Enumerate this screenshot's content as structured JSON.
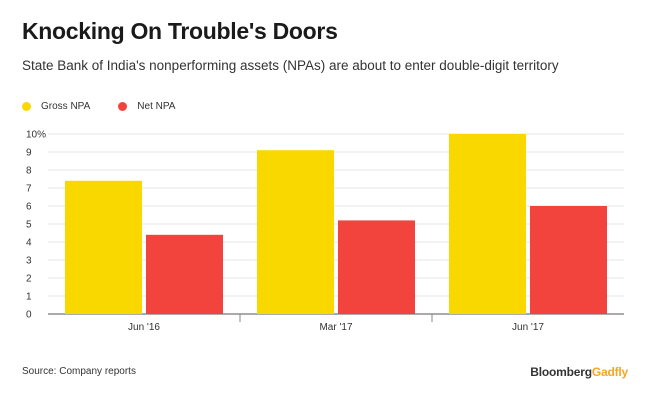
{
  "header": {
    "title": "Knocking On Trouble's Doors",
    "subtitle": "State Bank of India's nonperforming assets (NPAs) are about to enter double-digit territory"
  },
  "legend": [
    {
      "label": "Gross NPA",
      "color": "#f9d800"
    },
    {
      "label": "Net NPA",
      "color": "#f2443d"
    }
  ],
  "chart_data": {
    "type": "bar",
    "title": "Knocking On Trouble's Doors",
    "xlabel": "",
    "ylabel": "",
    "categories": [
      "Jun '16",
      "Mar '17",
      "Jun '17"
    ],
    "series": [
      {
        "name": "Gross NPA",
        "values": [
          7.4,
          9.1,
          10.0
        ],
        "color": "#f9d800"
      },
      {
        "name": "Net NPA",
        "values": [
          4.4,
          5.2,
          6.0
        ],
        "color": "#f2443d"
      }
    ],
    "ylim": [
      0,
      10
    ],
    "yticks": [
      "0",
      "1",
      "2",
      "3",
      "4",
      "5",
      "6",
      "7",
      "8",
      "9",
      "10%"
    ],
    "grid": true,
    "legend_position": "top-left"
  },
  "footer": {
    "source": "Source: Company reports",
    "brand_part1": "Bloomberg",
    "brand_part2": "Gadfly"
  }
}
